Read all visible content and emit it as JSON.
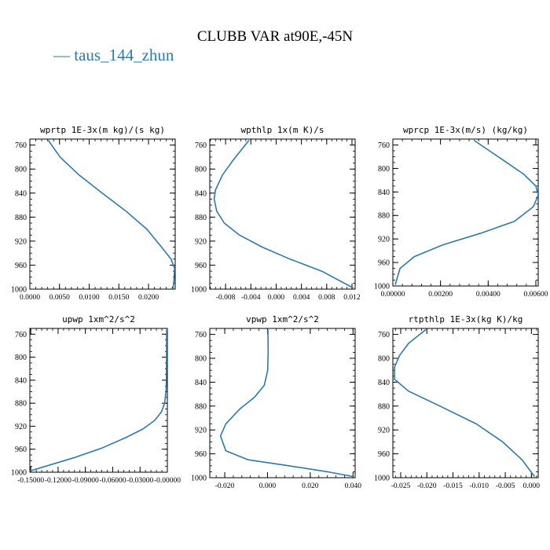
{
  "page_title": "CLUBB VAR at90E,-45N",
  "legend": {
    "dash": "—",
    "label": "taus_144_zhun"
  },
  "colors": {
    "line": "#2a7ab0",
    "axis": "#000000",
    "tick_text": "#000000"
  },
  "chart_data": [
    {
      "type": "line",
      "title": "wprtp  1E-3x(m kg)/(s kg)",
      "xlim": [
        0,
        0.0245
      ],
      "ylim": [
        1000,
        750
      ],
      "xticks": [
        0,
        0.005,
        0.01,
        0.015,
        0.02
      ],
      "xtick_labels": [
        "0.0000",
        "0.0050",
        "0.0100",
        "0.0150",
        "0.0200"
      ],
      "yticks": [
        760,
        800,
        840,
        880,
        920,
        960,
        1000
      ],
      "ytick_labels": [
        "760",
        "800",
        "840",
        "880",
        "920",
        "960",
        "1000"
      ],
      "series": [
        {
          "x": [
            0.0031,
            0.0051,
            0.0083,
            0.0122,
            0.0162,
            0.0197,
            0.0222,
            0.0238,
            0.0244,
            0.0243,
            0.0241
          ],
          "y": [
            752,
            780,
            810,
            840,
            870,
            900,
            930,
            950,
            965,
            985,
            1000
          ]
        }
      ]
    },
    {
      "type": "line",
      "title": "wpthlp  1x(m K)/s",
      "xlim": [
        -0.0105,
        0.0125
      ],
      "ylim": [
        1000,
        750
      ],
      "xticks": [
        -0.008,
        -0.004,
        0,
        0.004,
        0.008,
        0.012
      ],
      "xtick_labels": [
        "-0.008",
        "-0.004",
        "0.000",
        "0.004",
        "0.008",
        "0.012"
      ],
      "yticks": [
        760,
        800,
        840,
        880,
        920,
        960,
        1000
      ],
      "ytick_labels": [
        "760",
        "800",
        "840",
        "880",
        "920",
        "960",
        "1000"
      ],
      "series": [
        {
          "x": [
            -0.0043,
            -0.0068,
            -0.0085,
            -0.0096,
            -0.0098,
            -0.0094,
            -0.0082,
            -0.0058,
            -0.0022,
            0.0022,
            0.0072,
            0.0122
          ],
          "y": [
            752,
            785,
            810,
            835,
            850,
            870,
            890,
            910,
            930,
            950,
            970,
            998
          ]
        }
      ]
    },
    {
      "type": "line",
      "title": "wprcp  1E-3x(m/s) (kg/kg)",
      "xlim": [
        0,
        0.0061
      ],
      "ylim": [
        1000,
        750
      ],
      "xticks": [
        0,
        0.002,
        0.004,
        0.006
      ],
      "xtick_labels": [
        "0.00000",
        "0.00200",
        "0.00400",
        "0.00600"
      ],
      "yticks": [
        760,
        800,
        840,
        880,
        920,
        960,
        1000
      ],
      "ytick_labels": [
        "760",
        "800",
        "840",
        "880",
        "920",
        "960",
        "1000"
      ],
      "series": [
        {
          "x": [
            0.0034,
            0.0046,
            0.0055,
            0.006,
            0.0061,
            0.0059,
            0.0051,
            0.0037,
            0.0021,
            0.0009,
            0.0003,
            0.0001
          ],
          "y": [
            752,
            785,
            810,
            830,
            845,
            865,
            890,
            910,
            930,
            950,
            970,
            998
          ]
        }
      ]
    },
    {
      "type": "line",
      "title": "upwp  1xm^2/s^2",
      "xlim": [
        -0.151,
        0.0
      ],
      "ylim": [
        1000,
        750
      ],
      "xticks": [
        -0.15,
        -0.12,
        -0.09,
        -0.06,
        -0.03,
        0
      ],
      "xtick_labels": [
        "-0.15000",
        "-0.12000",
        "-0.09000",
        "-0.06000",
        "-0.03000",
        "-0.00000"
      ],
      "yticks": [
        760,
        800,
        840,
        880,
        920,
        960,
        1000
      ],
      "ytick_labels": [
        "760",
        "800",
        "840",
        "880",
        "920",
        "960",
        "1000"
      ],
      "series": [
        {
          "x": [
            -0.0008,
            -0.0009,
            -0.001,
            -0.0015,
            -0.003,
            -0.0065,
            -0.014,
            -0.027,
            -0.046,
            -0.072,
            -0.103,
            -0.151
          ],
          "y": [
            752,
            800,
            840,
            860,
            880,
            895,
            910,
            925,
            940,
            958,
            975,
            998
          ]
        }
      ]
    },
    {
      "type": "line",
      "title": "vpwp  1xm^2/s^2",
      "xlim": [
        -0.027,
        0.041
      ],
      "ylim": [
        1000,
        750
      ],
      "xticks": [
        -0.02,
        0,
        0.02,
        0.04
      ],
      "xtick_labels": [
        "-0.020",
        "0.000",
        "0.020",
        "0.040"
      ],
      "yticks": [
        760,
        800,
        840,
        880,
        920,
        960,
        1000
      ],
      "ytick_labels": [
        "760",
        "800",
        "840",
        "880",
        "920",
        "960",
        "1000"
      ],
      "series": [
        {
          "x": [
            0.0002,
            0.0003,
            0.0001,
            -0.0015,
            -0.006,
            -0.013,
            -0.0195,
            -0.022,
            -0.0195,
            -0.009,
            0.01,
            0.028,
            0.04
          ],
          "y": [
            752,
            790,
            820,
            845,
            865,
            885,
            910,
            930,
            955,
            970,
            980,
            990,
            998
          ]
        }
      ]
    },
    {
      "type": "line",
      "title": "rtpthlp  1E-3x(kg K)/kg",
      "xlim": [
        -0.0265,
        0.0013
      ],
      "ylim": [
        1000,
        750
      ],
      "xticks": [
        -0.025,
        -0.02,
        -0.015,
        -0.01,
        -0.005,
        0
      ],
      "xtick_labels": [
        "-0.025",
        "-0.020",
        "-0.015",
        "-0.010",
        "-0.005",
        "0.000"
      ],
      "yticks": [
        760,
        800,
        840,
        880,
        920,
        960,
        1000
      ],
      "ytick_labels": [
        "760",
        "800",
        "840",
        "880",
        "920",
        "960",
        "1000"
      ],
      "series": [
        {
          "x": [
            -0.0202,
            -0.0235,
            -0.0252,
            -0.0262,
            -0.0262,
            -0.0235,
            -0.0175,
            -0.0105,
            -0.0055,
            -0.0018,
            0.0006
          ],
          "y": [
            752,
            775,
            795,
            815,
            835,
            855,
            880,
            910,
            940,
            970,
            998
          ]
        }
      ]
    }
  ]
}
